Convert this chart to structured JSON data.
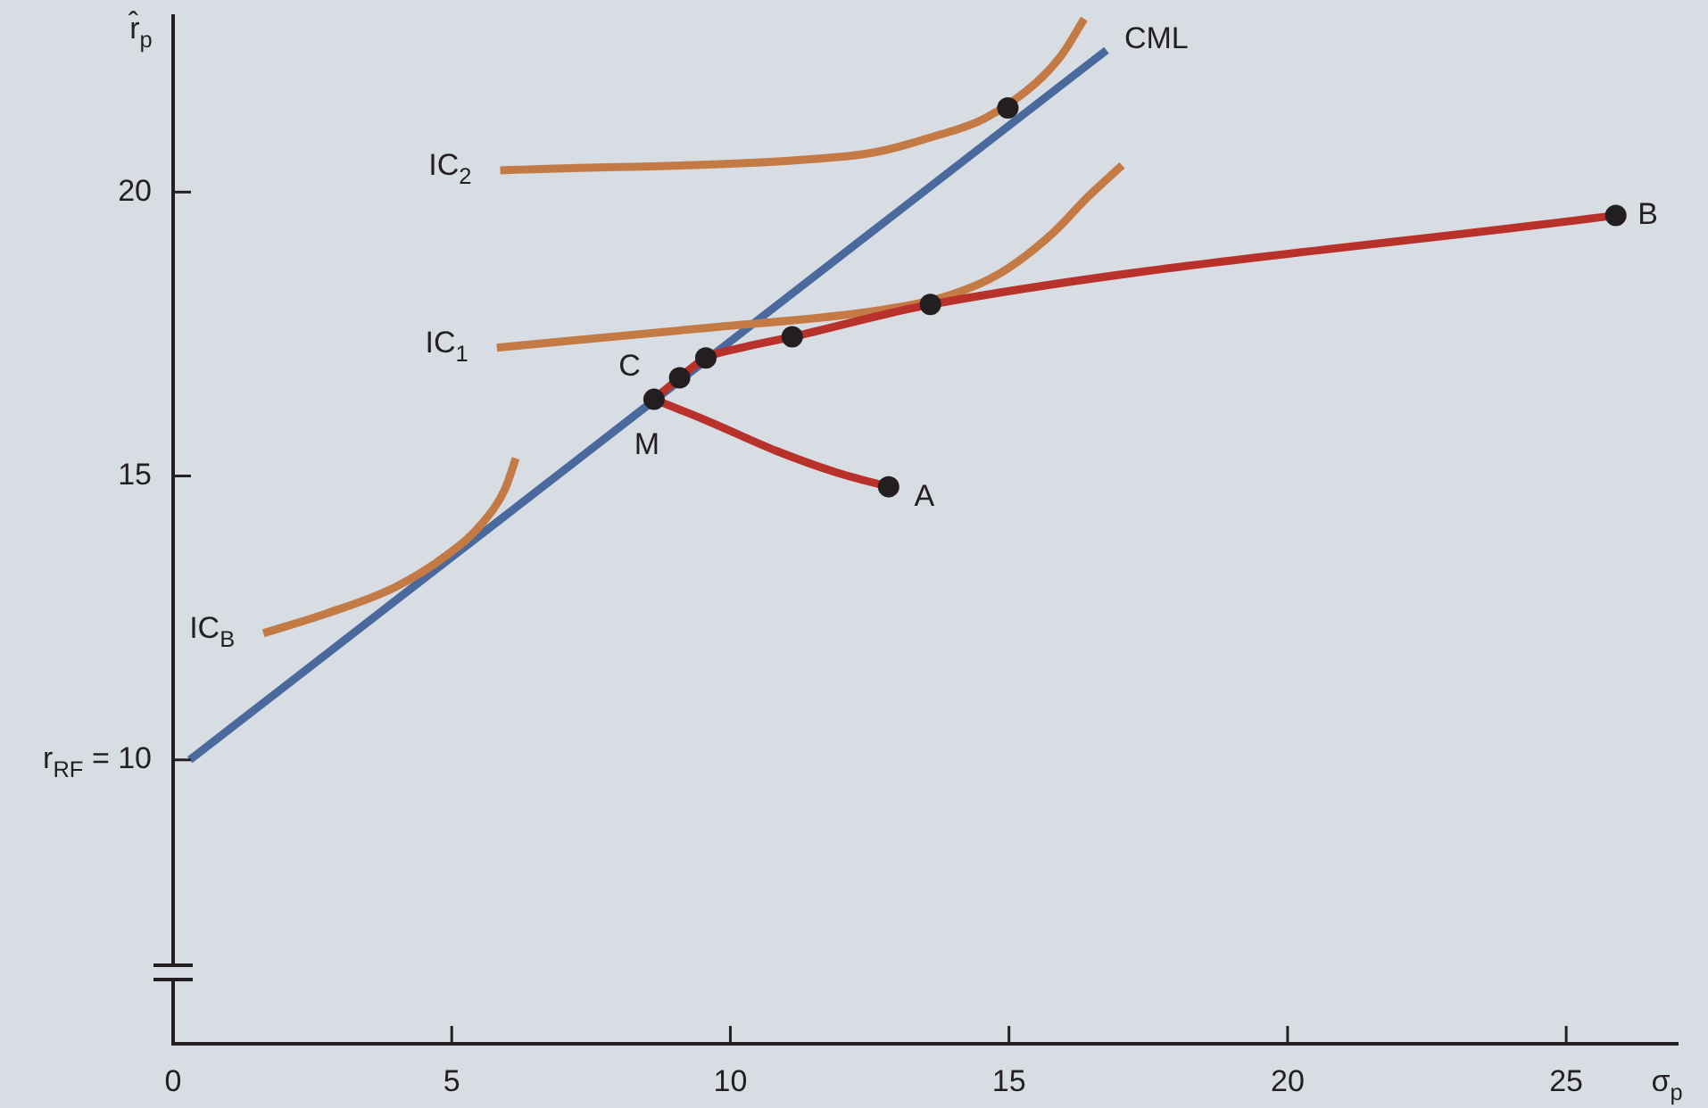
{
  "chart_data": {
    "type": "line",
    "xlabel": "σ$_{p}$",
    "ylabel": "r̂$_{p}$",
    "xlim": [
      0,
      27
    ],
    "ylim": [
      5,
      23.1
    ],
    "xticks": [
      0,
      5,
      10,
      15,
      20,
      25
    ],
    "yticks": [
      {
        "value": 10,
        "label": "r$_{RF}$ = 10"
      },
      15,
      20
    ],
    "grid": false,
    "legend": false,
    "marker": "none",
    "line_style": "solid",
    "series": [
      {
        "name": "CML",
        "color": "#4a6a9e",
        "x": [
          0.3,
          16.75
        ],
        "values": [
          10,
          22.5
        ]
      },
      {
        "name": "IC$_{2}$",
        "color": "#c47a45",
        "x": [
          5.87,
          12.07,
          12.69,
          13.62,
          14.55,
          15.48,
          15.95,
          16.35
        ],
        "values": [
          20.38,
          20.63,
          20.72,
          20.97,
          21.29,
          21.92,
          22.42,
          23.05
        ]
      },
      {
        "name": "IC$_{1}$",
        "color": "#c47a45",
        "x": [
          5.81,
          9.59,
          12.69,
          13.93,
          14.86,
          15.79,
          16.41,
          17.03
        ],
        "values": [
          17.26,
          17.61,
          17.92,
          18.18,
          18.58,
          19.28,
          19.91,
          20.47
        ]
      },
      {
        "name": "IC$_{B}$",
        "color": "#c47a45",
        "x": [
          1.62,
          2.76,
          4.0,
          4.93,
          5.56,
          5.96,
          6.15
        ],
        "values": [
          12.23,
          12.58,
          13.05,
          13.62,
          14.18,
          14.78,
          15.31
        ]
      },
      {
        "color": "#b8312a",
        "x": [
          8.63,
          9.09,
          9.56,
          10.21,
          11.11,
          13.59,
          25.89
        ],
        "values": [
          16.35,
          16.73,
          17.08,
          17.26,
          17.45,
          18.02,
          19.59
        ]
      },
      {
        "color": "#b8312a",
        "x": [
          8.63,
          9.59,
          10.83,
          11.91,
          12.84
        ],
        "values": [
          16.35,
          15.97,
          15.44,
          15.06,
          14.81
        ]
      },
      {
        "type": "scatter",
        "marker": "circle",
        "color": "#231f20",
        "x": [
          8.63,
          9.09,
          9.56,
          11.11,
          13.59,
          25.89,
          14.98,
          12.84
        ],
        "values": [
          16.35,
          16.73,
          17.08,
          17.45,
          18.02,
          19.59,
          21.48,
          14.81
        ]
      }
    ],
    "annotations": [
      {
        "text": "M",
        "x": 8.63,
        "y": 16.35
      },
      {
        "text": "C",
        "x": 9.09,
        "y": 16.73
      },
      {
        "text": "A",
        "x": 12.84,
        "y": 14.81
      },
      {
        "text": "B",
        "x": 25.89,
        "y": 19.59
      }
    ]
  }
}
